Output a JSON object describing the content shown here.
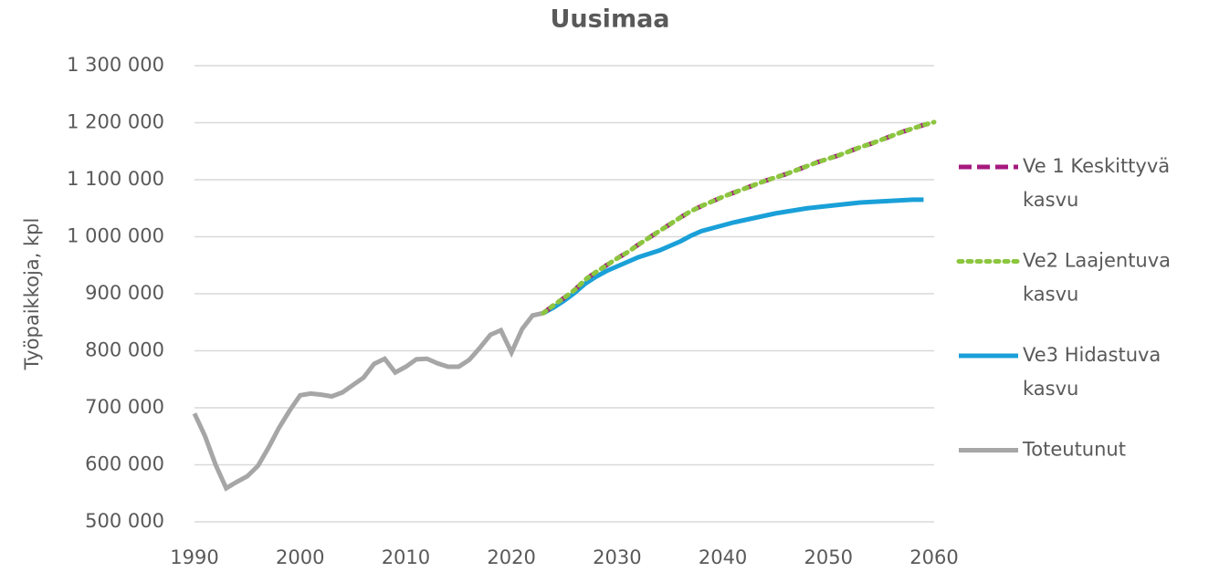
{
  "chart_data": {
    "type": "line",
    "title": "Uusimaa",
    "y_label": "Työpaikkoja, kpl",
    "x": [
      1990,
      1991,
      1992,
      1993,
      1994,
      1995,
      1996,
      1997,
      1998,
      1999,
      2000,
      2001,
      2002,
      2003,
      2004,
      2005,
      2006,
      2007,
      2008,
      2009,
      2010,
      2011,
      2012,
      2013,
      2014,
      2015,
      2016,
      2017,
      2018,
      2019,
      2020,
      2021,
      2022,
      2023,
      2024,
      2025,
      2026,
      2027,
      2028,
      2029,
      2030,
      2031,
      2032,
      2033,
      2034,
      2035,
      2036,
      2037,
      2038,
      2039,
      2040,
      2041,
      2042,
      2043,
      2044,
      2045,
      2046,
      2047,
      2048,
      2049,
      2050,
      2051,
      2052,
      2053,
      2054,
      2055,
      2056,
      2057,
      2058,
      2059,
      2060
    ],
    "series": [
      {
        "name": "Ve 1 Keskittyvä kasvu",
        "color": "#a6197f",
        "dash": "dashed",
        "values": [
          null,
          null,
          null,
          null,
          null,
          null,
          null,
          null,
          null,
          null,
          null,
          null,
          null,
          null,
          null,
          null,
          null,
          null,
          null,
          null,
          null,
          null,
          null,
          null,
          null,
          null,
          null,
          null,
          null,
          null,
          null,
          null,
          null,
          866000,
          880000,
          893000,
          907000,
          925000,
          938000,
          950000,
          962000,
          973000,
          986000,
          998000,
          1010000,
          1022000,
          1034000,
          1045000,
          1054000,
          1062000,
          1070000,
          1077000,
          1084000,
          1091000,
          1098000,
          1104000,
          1110000,
          1117000,
          1124000,
          1131000,
          1137000,
          1143000,
          1150000,
          1157000,
          1163000,
          1170000,
          1177000,
          1184000,
          1190000,
          1196000,
          1201000
        ]
      },
      {
        "name": "Ve2 Laajentuva kasvu",
        "color": "#8cc63f",
        "dash": "dotted",
        "values": [
          null,
          null,
          null,
          null,
          null,
          null,
          null,
          null,
          null,
          null,
          null,
          null,
          null,
          null,
          null,
          null,
          null,
          null,
          null,
          null,
          null,
          null,
          null,
          null,
          null,
          null,
          null,
          null,
          null,
          null,
          null,
          null,
          null,
          866000,
          880000,
          893000,
          907000,
          925000,
          938000,
          950000,
          962000,
          973000,
          986000,
          998000,
          1010000,
          1022000,
          1034000,
          1045000,
          1054000,
          1062000,
          1070000,
          1077000,
          1084000,
          1091000,
          1098000,
          1104000,
          1110000,
          1117000,
          1124000,
          1131000,
          1137000,
          1143000,
          1150000,
          1157000,
          1163000,
          1170000,
          1177000,
          1184000,
          1190000,
          1196000,
          1201000
        ]
      },
      {
        "name": "Ve3 Hidastuva kasvu",
        "color": "#1aa0d8",
        "dash": "solid",
        "values": [
          null,
          null,
          null,
          null,
          null,
          null,
          null,
          null,
          null,
          null,
          null,
          null,
          null,
          null,
          null,
          null,
          null,
          null,
          null,
          null,
          null,
          null,
          null,
          null,
          null,
          null,
          null,
          null,
          null,
          null,
          null,
          null,
          null,
          866000,
          876000,
          888000,
          902000,
          918000,
          930000,
          940000,
          948000,
          956000,
          964000,
          970000,
          976000,
          984000,
          992000,
          1002000,
          1010000,
          1015000,
          1020000,
          1025000,
          1029000,
          1033000,
          1037000,
          1041000,
          1044000,
          1047000,
          1050000,
          1052000,
          1054000,
          1056000,
          1058000,
          1060000,
          1061000,
          1062000,
          1063000,
          1064000,
          1065000,
          1065000,
          null
        ]
      },
      {
        "name": "Toteutunut",
        "color": "#a6a6a6",
        "dash": "solid",
        "values": [
          690000,
          650000,
          600000,
          559000,
          570000,
          580000,
          598000,
          630000,
          665000,
          695000,
          722000,
          725000,
          723000,
          720000,
          727000,
          740000,
          753000,
          777000,
          786000,
          762000,
          772000,
          785000,
          786000,
          778000,
          772000,
          772000,
          784000,
          805000,
          828000,
          836000,
          797000,
          838000,
          862000,
          866000,
          null,
          null,
          null,
          null,
          null,
          null,
          null,
          null,
          null,
          null,
          null,
          null,
          null,
          null,
          null,
          null,
          null,
          null,
          null,
          null,
          null,
          null,
          null,
          null,
          null,
          null,
          null,
          null,
          null,
          null,
          null,
          null,
          null,
          null,
          null,
          null,
          null
        ]
      }
    ],
    "xlim": [
      1990,
      2060
    ],
    "xticks": [
      1990,
      2000,
      2010,
      2020,
      2030,
      2040,
      2050,
      2060
    ],
    "ylim": [
      500000,
      1300000
    ],
    "yticks": [
      {
        "value": 500000,
        "label": "500 000"
      },
      {
        "value": 600000,
        "label": "600 000"
      },
      {
        "value": 700000,
        "label": "700 000"
      },
      {
        "value": 800000,
        "label": "800 000"
      },
      {
        "value": 900000,
        "label": "900 000"
      },
      {
        "value": 1000000,
        "label": "1 000 000"
      },
      {
        "value": 1100000,
        "label": "1 100 000"
      },
      {
        "value": 1200000,
        "label": "1 200 000"
      },
      {
        "value": 1300000,
        "label": "1 300 000"
      }
    ],
    "grid": true,
    "legend": "right"
  }
}
